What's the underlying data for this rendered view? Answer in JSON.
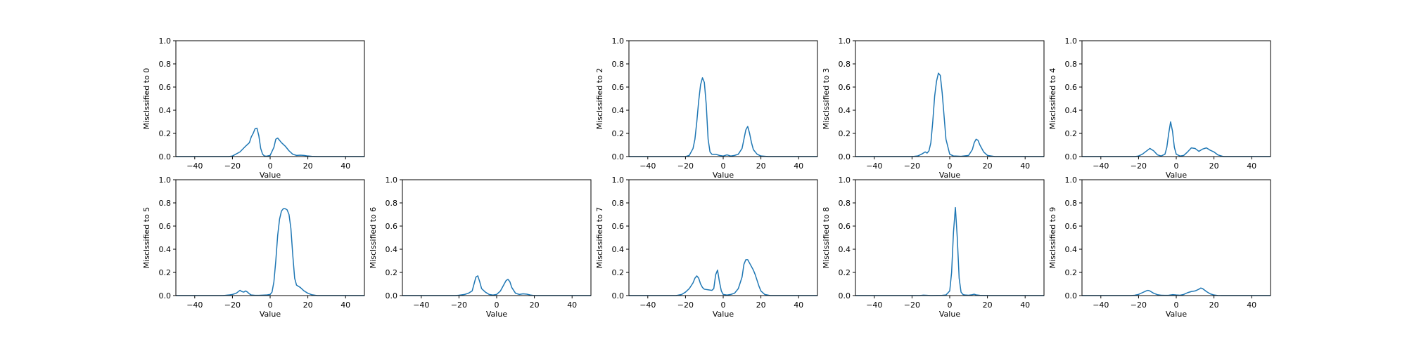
{
  "chart_data": [
    {
      "type": "line",
      "ylabel": "Misclssified to 0",
      "xlabel": "Value",
      "xlim": [
        -50,
        50
      ],
      "ylim": [
        0,
        1
      ],
      "xticks": [
        -40,
        -20,
        0,
        20,
        40
      ],
      "yticks": [
        0.0,
        0.2,
        0.4,
        0.6,
        0.8,
        1.0
      ],
      "line_color": "#1f77b4",
      "x": [
        -50,
        -22,
        -20,
        -16,
        -13,
        -11,
        -10,
        -9,
        -8,
        -7,
        -6,
        -5,
        -4,
        -3,
        -2,
        0,
        2,
        3,
        4,
        6,
        8,
        10,
        12,
        14,
        16,
        18,
        20,
        22,
        25,
        50
      ],
      "y": [
        0,
        0,
        0.005,
        0.04,
        0.09,
        0.12,
        0.17,
        0.2,
        0.24,
        0.245,
        0.18,
        0.07,
        0.02,
        0.005,
        0.003,
        0.01,
        0.08,
        0.15,
        0.16,
        0.12,
        0.09,
        0.05,
        0.02,
        0.01,
        0.012,
        0.01,
        0.005,
        0.002,
        0,
        0
      ]
    },
    {
      "type": "line",
      "ylabel": "Misclssified to 2",
      "xlabel": "Value",
      "xlim": [
        -50,
        50
      ],
      "ylim": [
        0,
        1
      ],
      "xticks": [
        -40,
        -20,
        0,
        20,
        40
      ],
      "yticks": [
        0.0,
        0.2,
        0.4,
        0.6,
        0.8,
        1.0
      ],
      "line_color": "#1f77b4",
      "x": [
        -50,
        -20,
        -18,
        -16,
        -15,
        -14,
        -13,
        -12,
        -11,
        -10,
        -9,
        -8,
        -7,
        -6,
        -4,
        -2,
        0,
        2,
        4,
        6,
        8,
        10,
        11,
        12,
        13,
        14,
        15,
        16,
        18,
        20,
        24,
        50
      ],
      "y": [
        0,
        0,
        0.01,
        0.07,
        0.15,
        0.3,
        0.48,
        0.62,
        0.68,
        0.64,
        0.45,
        0.15,
        0.04,
        0.02,
        0.02,
        0.01,
        0.005,
        0.015,
        0.005,
        0.01,
        0.02,
        0.07,
        0.15,
        0.23,
        0.26,
        0.2,
        0.12,
        0.06,
        0.02,
        0.005,
        0,
        0
      ]
    },
    {
      "type": "line",
      "ylabel": "Misclssified to 3",
      "xlabel": "Value",
      "xlim": [
        -50,
        50
      ],
      "ylim": [
        0,
        1
      ],
      "xticks": [
        -40,
        -20,
        0,
        20,
        40
      ],
      "yticks": [
        0.0,
        0.2,
        0.4,
        0.6,
        0.8,
        1.0
      ],
      "line_color": "#1f77b4",
      "x": [
        -50,
        -20,
        -17,
        -15,
        -13,
        -12,
        -11,
        -10,
        -9,
        -8,
        -7,
        -6,
        -5,
        -4,
        -3,
        -2,
        0,
        2,
        6,
        10,
        12,
        13,
        14,
        15,
        16,
        18,
        20,
        24,
        50
      ],
      "y": [
        0,
        0,
        0.005,
        0.02,
        0.04,
        0.03,
        0.05,
        0.12,
        0.3,
        0.52,
        0.65,
        0.72,
        0.7,
        0.55,
        0.35,
        0.15,
        0.02,
        0.005,
        0.002,
        0.01,
        0.06,
        0.12,
        0.15,
        0.14,
        0.1,
        0.04,
        0.01,
        0,
        0
      ]
    },
    {
      "type": "line",
      "ylabel": "Misclssified to 4",
      "xlabel": "Value",
      "xlim": [
        -50,
        50
      ],
      "ylim": [
        0,
        1
      ],
      "xticks": [
        -40,
        -20,
        0,
        20,
        40
      ],
      "yticks": [
        0.0,
        0.2,
        0.4,
        0.6,
        0.8,
        1.0
      ],
      "line_color": "#1f77b4",
      "x": [
        -50,
        -22,
        -20,
        -18,
        -16,
        -14,
        -12,
        -10,
        -8,
        -6,
        -5,
        -4,
        -3,
        -2,
        -1,
        0,
        2,
        4,
        6,
        8,
        10,
        12,
        14,
        16,
        18,
        20,
        22,
        25,
        50
      ],
      "y": [
        0,
        0,
        0.005,
        0.02,
        0.045,
        0.07,
        0.05,
        0.015,
        0.005,
        0.02,
        0.08,
        0.2,
        0.3,
        0.22,
        0.08,
        0.02,
        0.005,
        0.01,
        0.04,
        0.075,
        0.07,
        0.045,
        0.065,
        0.075,
        0.055,
        0.04,
        0.015,
        0,
        0
      ]
    },
    {
      "type": "line",
      "ylabel": "Misclssified to 5",
      "xlabel": "Value",
      "xlim": [
        -50,
        50
      ],
      "ylim": [
        0,
        1
      ],
      "xticks": [
        -40,
        -20,
        0,
        20,
        40
      ],
      "yticks": [
        0.0,
        0.2,
        0.4,
        0.6,
        0.8,
        1.0
      ],
      "line_color": "#1f77b4",
      "x": [
        -50,
        -25,
        -22,
        -20,
        -18,
        -16,
        -15,
        -14,
        -13,
        -12,
        -11,
        -10,
        -8,
        -6,
        -4,
        -2,
        0,
        1,
        2,
        3,
        4,
        5,
        6,
        7,
        8,
        9,
        10,
        11,
        12,
        13,
        14,
        16,
        18,
        20,
        22,
        25,
        50
      ],
      "y": [
        0,
        0,
        0.005,
        0.01,
        0.02,
        0.045,
        0.035,
        0.03,
        0.04,
        0.03,
        0.015,
        0.005,
        0.002,
        0.002,
        0.004,
        0.005,
        0.01,
        0.03,
        0.12,
        0.3,
        0.52,
        0.66,
        0.73,
        0.75,
        0.75,
        0.74,
        0.7,
        0.58,
        0.35,
        0.15,
        0.09,
        0.07,
        0.04,
        0.02,
        0.008,
        0,
        0
      ]
    },
    {
      "type": "line",
      "ylabel": "Misclssified to 6",
      "xlabel": "Value",
      "xlim": [
        -50,
        50
      ],
      "ylim": [
        0,
        1
      ],
      "xticks": [
        -40,
        -20,
        0,
        20,
        40
      ],
      "yticks": [
        0.0,
        0.2,
        0.4,
        0.6,
        0.8,
        1.0
      ],
      "line_color": "#1f77b4",
      "x": [
        -50,
        -22,
        -20,
        -17,
        -15,
        -13,
        -12,
        -11,
        -10,
        -9,
        -8,
        -6,
        -4,
        -2,
        0,
        2,
        4,
        5,
        6,
        7,
        8,
        10,
        12,
        14,
        16,
        18,
        20,
        50
      ],
      "y": [
        0,
        0,
        0.003,
        0.01,
        0.02,
        0.04,
        0.1,
        0.16,
        0.17,
        0.12,
        0.06,
        0.03,
        0.01,
        0.005,
        0.01,
        0.04,
        0.1,
        0.13,
        0.14,
        0.12,
        0.07,
        0.02,
        0.01,
        0.015,
        0.012,
        0.005,
        0,
        0
      ]
    },
    {
      "type": "line",
      "ylabel": "Misclssified to 7",
      "xlabel": "Value",
      "xlim": [
        -50,
        50
      ],
      "ylim": [
        0,
        1
      ],
      "xticks": [
        -40,
        -20,
        0,
        20,
        40
      ],
      "yticks": [
        0.0,
        0.2,
        0.4,
        0.6,
        0.8,
        1.0
      ],
      "line_color": "#1f77b4",
      "x": [
        -50,
        -25,
        -22,
        -20,
        -18,
        -16,
        -15,
        -14,
        -13,
        -12,
        -11,
        -10,
        -8,
        -6,
        -5,
        -4,
        -3,
        -2,
        -1,
        0,
        2,
        4,
        6,
        8,
        10,
        11,
        12,
        13,
        14,
        15,
        16,
        17,
        18,
        19,
        20,
        22,
        25,
        50
      ],
      "y": [
        0,
        0,
        0.01,
        0.03,
        0.06,
        0.11,
        0.15,
        0.17,
        0.15,
        0.1,
        0.07,
        0.055,
        0.05,
        0.045,
        0.06,
        0.18,
        0.22,
        0.12,
        0.04,
        0.01,
        0.005,
        0.01,
        0.02,
        0.06,
        0.16,
        0.27,
        0.31,
        0.31,
        0.28,
        0.25,
        0.22,
        0.18,
        0.13,
        0.08,
        0.04,
        0.01,
        0,
        0
      ]
    },
    {
      "type": "line",
      "ylabel": "Misclssified to 8",
      "xlabel": "Value",
      "xlim": [
        -50,
        50
      ],
      "ylim": [
        0,
        1
      ],
      "xticks": [
        -40,
        -20,
        0,
        20,
        40
      ],
      "yticks": [
        0.0,
        0.2,
        0.4,
        0.6,
        0.8,
        1.0
      ],
      "line_color": "#1f77b4",
      "x": [
        -50,
        -16,
        -14,
        -12,
        -10,
        -4,
        -2,
        0,
        1,
        2,
        3,
        4,
        5,
        6,
        7,
        8,
        10,
        12,
        13,
        14,
        16,
        20,
        50
      ],
      "y": [
        0,
        0,
        0.004,
        0.002,
        0,
        0.002,
        0.005,
        0.04,
        0.2,
        0.55,
        0.76,
        0.5,
        0.15,
        0.03,
        0.01,
        0.005,
        0.003,
        0.008,
        0.012,
        0.006,
        0.002,
        0,
        0
      ]
    },
    {
      "type": "line",
      "ylabel": "Misclssified to 9",
      "xlabel": "Value",
      "xlim": [
        -50,
        50
      ],
      "ylim": [
        0,
        1
      ],
      "xticks": [
        -40,
        -20,
        0,
        20,
        40
      ],
      "yticks": [
        0.0,
        0.2,
        0.4,
        0.6,
        0.8,
        1.0
      ],
      "line_color": "#1f77b4",
      "x": [
        -50,
        -24,
        -22,
        -20,
        -18,
        -16,
        -15,
        -14,
        -12,
        -10,
        -8,
        -6,
        -4,
        -2,
        0,
        2,
        4,
        6,
        8,
        10,
        12,
        13,
        14,
        16,
        18,
        20,
        22,
        24,
        50
      ],
      "y": [
        0,
        0,
        0.003,
        0.01,
        0.025,
        0.04,
        0.045,
        0.04,
        0.02,
        0.008,
        0.003,
        0.002,
        0.003,
        0.008,
        0.005,
        0.003,
        0.01,
        0.025,
        0.035,
        0.04,
        0.055,
        0.065,
        0.06,
        0.035,
        0.015,
        0.005,
        0.001,
        0,
        0
      ]
    }
  ]
}
